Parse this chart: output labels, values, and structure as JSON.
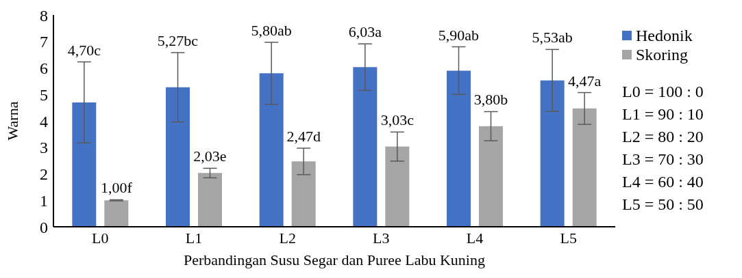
{
  "chart_data": {
    "type": "bar",
    "xlabel": "Perbandingan Susu Segar dan Puree Labu Kuning",
    "ylabel": "Warna",
    "categories": [
      "L0",
      "L1",
      "L2",
      "L3",
      "L4",
      "L5"
    ],
    "series": [
      {
        "name": "Hedonik",
        "color": "#4472c4",
        "values": [
          4.7,
          5.27,
          5.8,
          6.03,
          5.9,
          5.53
        ],
        "errors": [
          1.53,
          1.31,
          1.17,
          0.88,
          0.9,
          1.17
        ],
        "value_labels": [
          "4,70c",
          "5,27bc",
          "5,80ab",
          "6,03a",
          "5,90ab",
          "5,53ab"
        ]
      },
      {
        "name": "Skoring",
        "color": "#a5a5a5",
        "values": [
          1.0,
          2.03,
          2.47,
          3.03,
          3.8,
          4.47
        ],
        "errors": [
          0.02,
          0.18,
          0.5,
          0.55,
          0.55,
          0.6
        ],
        "value_labels": [
          "1,00f",
          "2,03e",
          "2,47d",
          "3,03c",
          "3,80b",
          "4,47a"
        ]
      }
    ],
    "ylim": [
      0,
      8
    ],
    "yticks": [
      0,
      1,
      2,
      3,
      4,
      5,
      6,
      7,
      8
    ],
    "grid": false,
    "legend": "right",
    "annotations": [
      "L0 = 100 : 0",
      "L1 = 90 : 10",
      "L2 = 80 : 20",
      "L3 = 70 : 30",
      "L4 = 60 : 40",
      "L5 = 50 : 50"
    ]
  }
}
